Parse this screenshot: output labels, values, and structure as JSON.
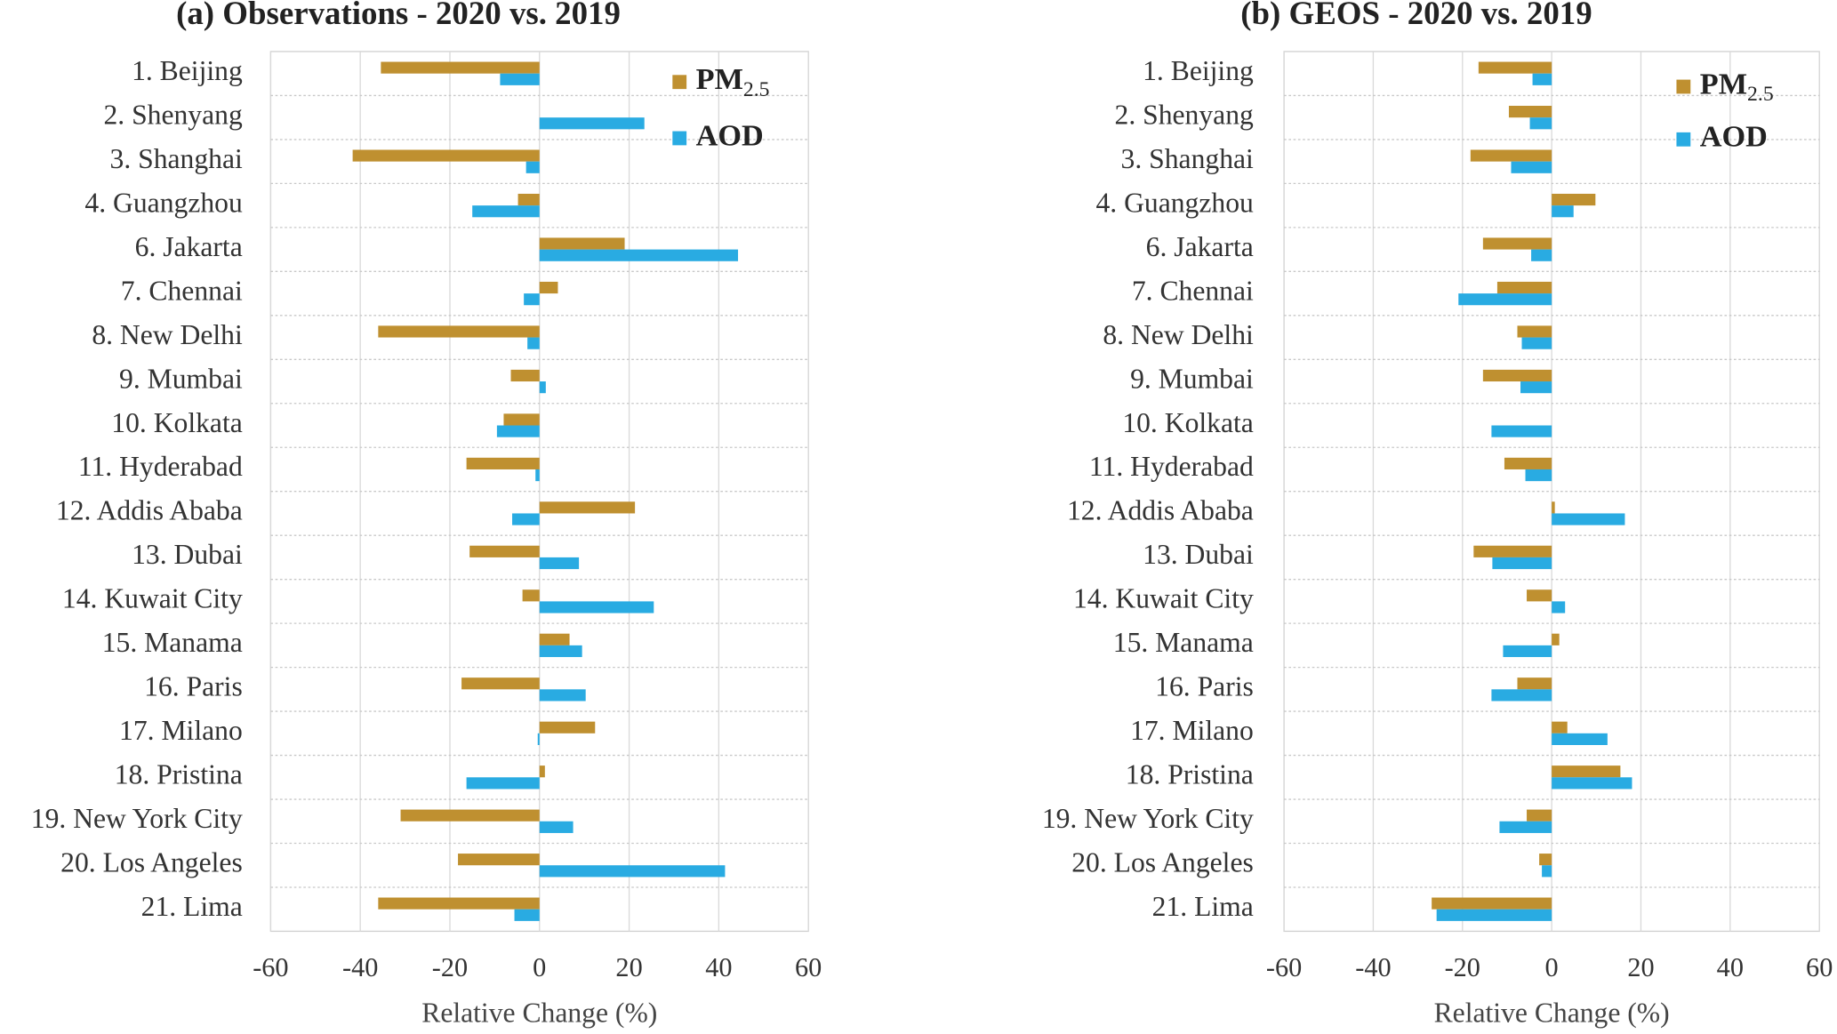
{
  "chart_data": [
    {
      "type": "bar",
      "orientation": "horizontal",
      "title": "(a) Observations - 2020 vs. 2019",
      "categories": [
        "1. Beijing",
        "2. Shenyang",
        "3. Shanghai",
        "4. Guangzhou",
        "6. Jakarta",
        "7. Chennai",
        "8. New Delhi",
        "9. Mumbai",
        "10. Kolkata",
        "11. Hyderabad",
        "12. Addis Ababa",
        "13. Dubai",
        "14. Kuwait City",
        "15. Manama",
        "16. Paris",
        "17. Milano",
        "18. Pristina",
        "19. New York City",
        "20. Los Angeles",
        "21. Lima"
      ],
      "series": [
        {
          "name": "PM2.5",
          "color": "#bf9030",
          "values": [
            -35.4,
            0,
            -41.7,
            -4.8,
            19.0,
            4.1,
            -36.0,
            -6.4,
            -8.0,
            -16.3,
            21.3,
            -15.6,
            -3.8,
            6.7,
            -17.4,
            12.4,
            1.2,
            -31.0,
            -18.2,
            -36.0
          ]
        },
        {
          "name": "AOD",
          "color": "#29abe2",
          "values": [
            -8.8,
            23.4,
            -3.0,
            -15.0,
            44.3,
            -3.5,
            -2.7,
            1.4,
            -9.5,
            -0.9,
            -6.1,
            8.8,
            25.5,
            9.5,
            10.3,
            -0.4,
            -16.3,
            7.5,
            41.4,
            -5.6
          ]
        }
      ],
      "xlim": [
        -60,
        60
      ],
      "xticks": [
        -60,
        -40,
        -20,
        0,
        20,
        40,
        60
      ],
      "x_label": "Relative Change (%)",
      "grid": true
    },
    {
      "type": "bar",
      "orientation": "horizontal",
      "title": "(b) GEOS - 2020 vs. 2019",
      "categories": [
        "1. Beijing",
        "2. Shenyang",
        "3. Shanghai",
        "4. Guangzhou",
        "6. Jakarta",
        "7. Chennai",
        "8. New Delhi",
        "9. Mumbai",
        "10. Kolkata",
        "11. Hyderabad",
        "12. Addis Ababa",
        "13. Dubai",
        "14. Kuwait City",
        "15. Manama",
        "16. Paris",
        "17. Milano",
        "18. Pristina",
        "19. New York City",
        "20. Los Angeles",
        "21. Lima"
      ],
      "series": [
        {
          "name": "PM2.5",
          "color": "#bf9030",
          "values": [
            -16.4,
            -9.6,
            -18.2,
            9.8,
            -15.4,
            -12.2,
            -7.7,
            -15.4,
            0,
            -10.6,
            0.7,
            -17.5,
            -5.6,
            1.7,
            -7.7,
            3.5,
            15.4,
            -5.6,
            -2.8,
            -26.9
          ]
        },
        {
          "name": "AOD",
          "color": "#29abe2",
          "values": [
            -4.3,
            -4.9,
            -9.1,
            4.9,
            -4.6,
            -20.9,
            -6.7,
            -7.0,
            -13.5,
            -5.9,
            16.4,
            -13.3,
            3.0,
            -10.9,
            -13.5,
            12.5,
            18.0,
            -11.7,
            -2.2,
            -25.8
          ]
        }
      ],
      "xlim": [
        -60,
        60
      ],
      "xticks": [
        -60,
        -40,
        -20,
        0,
        20,
        40,
        60
      ],
      "x_label": "Relative Change (%)",
      "grid": true
    }
  ]
}
